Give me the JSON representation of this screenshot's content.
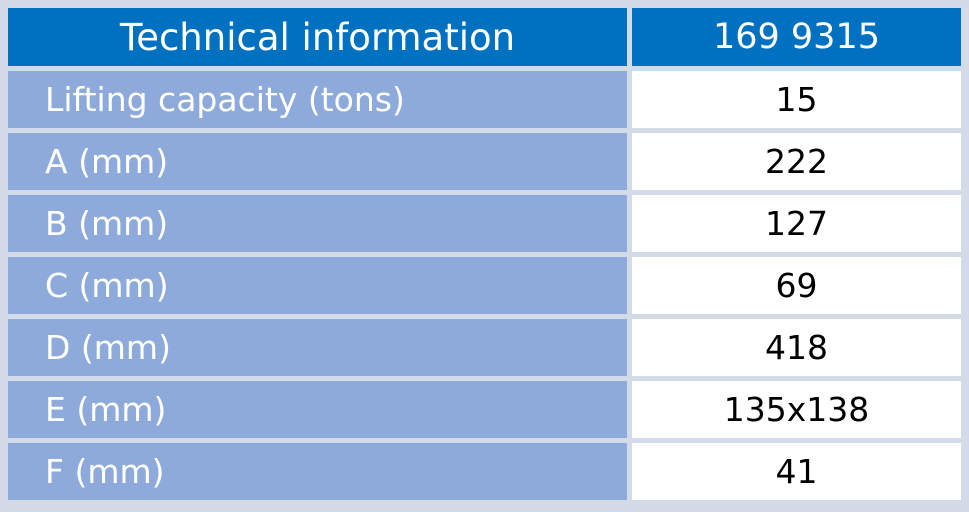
{
  "table": {
    "header": [
      "Technical information",
      "169 9315"
    ],
    "rows": [
      [
        "Lifting capacity (tons)",
        "15"
      ],
      [
        "A (mm)",
        "222"
      ],
      [
        "B (mm)",
        "127"
      ],
      [
        "C (mm)",
        "69"
      ],
      [
        "D (mm)",
        "418"
      ],
      [
        "E (mm)",
        "135x138"
      ],
      [
        "F (mm)",
        "41"
      ]
    ]
  }
}
